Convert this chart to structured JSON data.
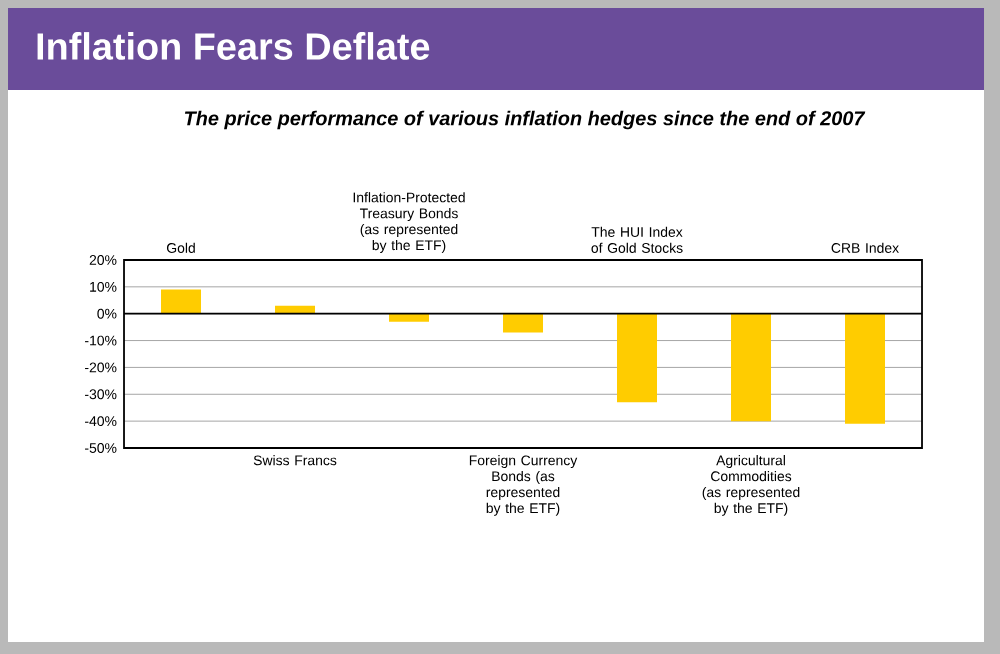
{
  "chart_data": {
    "type": "bar",
    "title": "Inflation Fears Deflate",
    "subtitle": "The price performance of various inflation hedges since the end of 2007",
    "categories": [
      "Gold",
      "Swiss Francs",
      "Inflation-Protected Treasury Bonds (as represented by the ETF)",
      "Foreign Currency Bonds (as represented by the ETF)",
      "The HUI Index of Gold Stocks",
      "Agricultural Commodities (as represented by the ETF)",
      "CRB Index"
    ],
    "values": [
      9,
      3,
      -3,
      -7,
      -33,
      -40,
      -41
    ],
    "color": "#ffcc00",
    "ylim": [
      -50,
      20
    ],
    "yticks": [
      {
        "value": -50,
        "label": "-50%"
      },
      {
        "value": -40,
        "label": "-40%"
      },
      {
        "value": -30,
        "label": "-30%"
      },
      {
        "value": -20,
        "label": "-20%"
      },
      {
        "value": -10,
        "label": "-10%"
      },
      {
        "value": 0,
        "label": "0%"
      },
      {
        "value": 10,
        "label": "10%"
      },
      {
        "value": 20,
        "label": "20%"
      }
    ],
    "grid": true
  }
}
